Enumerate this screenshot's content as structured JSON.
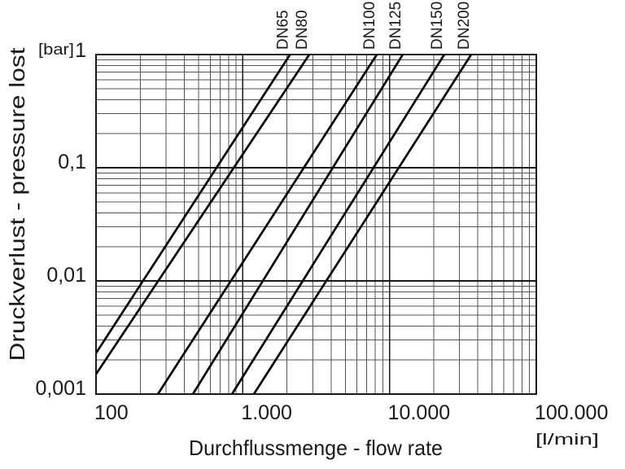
{
  "chart_data": {
    "type": "line",
    "title": "",
    "x_axis": {
      "label": "Durchflussmenge - flow rate",
      "unit": "[l/min]",
      "scale": "log",
      "min": 100,
      "max": 100000,
      "ticks": [
        {
          "value": 100,
          "label": "100"
        },
        {
          "value": 1000,
          "label": "1.000"
        },
        {
          "value": 10000,
          "label": "10.000"
        },
        {
          "value": 100000,
          "label": "100.000"
        }
      ]
    },
    "y_axis": {
      "label": "Druckverlust - pressure lost",
      "unit": "[bar]",
      "scale": "log",
      "min": 0.001,
      "max": 1,
      "ticks": [
        {
          "value": 1,
          "label": "1"
        },
        {
          "value": 0.1,
          "label": "0,1"
        },
        {
          "value": 0.01,
          "label": "0,01"
        },
        {
          "value": 0.001,
          "label": "0,001"
        }
      ]
    },
    "grid": "full log minor + major grid",
    "legend_position": "rotated labels above plot at line exits",
    "series": [
      {
        "name": "DN65",
        "points": [
          [
            100,
            0.0023
          ],
          [
            2100,
            1.0
          ]
        ]
      },
      {
        "name": "DN80",
        "points": [
          [
            100,
            0.0015
          ],
          [
            2840,
            1.0
          ]
        ]
      },
      {
        "name": "DN100",
        "points": [
          [
            264,
            0.001
          ],
          [
            8190,
            1.0
          ]
        ]
      },
      {
        "name": "DN125",
        "points": [
          [
            457,
            0.001
          ],
          [
            12300,
            1.0
          ]
        ]
      },
      {
        "name": "DN150",
        "points": [
          [
            844,
            0.001
          ],
          [
            23600,
            1.0
          ]
        ]
      },
      {
        "name": "DN200",
        "points": [
          [
            1190,
            0.001
          ],
          [
            36000,
            1.0
          ]
        ]
      }
    ],
    "colors": {
      "line": "#050505",
      "grid_minor": "#555555",
      "grid_major": "#1a1a1a",
      "border": "#1a1a1a",
      "text": "#1a1a1a",
      "background": "#ffffff"
    }
  }
}
